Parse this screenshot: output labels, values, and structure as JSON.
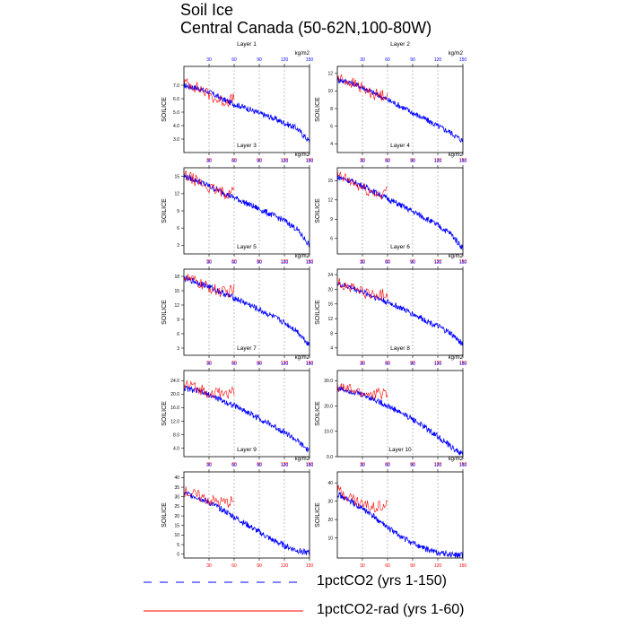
{
  "title": "Soil Ice",
  "subtitle": "Central Canada (50-62N,100-80W)",
  "legend": {
    "blue_label": "1pctCO2 (yrs 1-150)",
    "red_label": "1pctCO2-rad (yrs 1-60)"
  },
  "colors": {
    "blue": "#0000ff",
    "red": "#ff0000",
    "grid": "#999999"
  },
  "chart_data": [
    {
      "type": "line",
      "title": "Layer 1",
      "ylabel": "SOILICE",
      "units_label": "kg/m2",
      "top_ticks": [
        "30",
        "60",
        "90",
        "120",
        "150"
      ],
      "bottom_ticks": [
        "30",
        "60",
        "90",
        "120",
        "150"
      ],
      "yticks": [
        "3.0",
        "4.0",
        "5.0",
        "6.0",
        "7.0"
      ],
      "ylim": [
        2.0,
        8.4
      ],
      "xlim": [
        0,
        150
      ],
      "grid": "vertical dashed",
      "series": [
        {
          "name": "1pctCO2 (yrs 1-150)",
          "x": [
            0,
            15,
            30,
            45,
            60,
            75,
            90,
            105,
            120,
            135,
            150
          ],
          "values": [
            7.0,
            6.8,
            6.5,
            6.0,
            5.6,
            5.3,
            4.9,
            4.6,
            4.2,
            3.8,
            2.8
          ]
        },
        {
          "name": "1pctCO2-rad (yrs 1-60)",
          "x": [
            0,
            10,
            20,
            30,
            40,
            50,
            60
          ],
          "values": [
            7.2,
            7.0,
            6.7,
            6.3,
            5.9,
            5.8,
            6.0
          ]
        }
      ]
    },
    {
      "type": "line",
      "title": "Layer 2",
      "ylabel": "SOILICE",
      "units_label": "kg/m2",
      "top_ticks": [
        "30",
        "60",
        "90",
        "120",
        "150"
      ],
      "bottom_ticks": [
        "30",
        "60",
        "90",
        "120",
        "150"
      ],
      "yticks": [
        "4",
        "6",
        "8",
        "10",
        "12"
      ],
      "ylim": [
        3.0,
        12.8
      ],
      "xlim": [
        0,
        150
      ],
      "grid": "vertical dashed",
      "series": [
        {
          "name": "1pctCO2 (yrs 1-150)",
          "x": [
            0,
            15,
            30,
            45,
            60,
            75,
            90,
            105,
            120,
            135,
            150
          ],
          "values": [
            11.3,
            11.0,
            10.4,
            9.7,
            9.0,
            8.3,
            7.5,
            6.8,
            6.0,
            5.3,
            4.3
          ]
        },
        {
          "name": "1pctCO2-rad (yrs 1-60)",
          "x": [
            0,
            10,
            20,
            30,
            40,
            50,
            60
          ],
          "values": [
            11.5,
            11.2,
            10.8,
            10.3,
            9.8,
            9.5,
            9.7
          ]
        }
      ]
    },
    {
      "type": "line",
      "title": "Layer 3",
      "ylabel": "SOILICE",
      "units_label": "kg/m2",
      "top_ticks": [
        "30",
        "60",
        "90",
        "120",
        "150"
      ],
      "bottom_ticks": [
        "30",
        "60",
        "90",
        "120",
        "150"
      ],
      "yticks": [
        "3",
        "6",
        "9",
        "12",
        "15"
      ],
      "ylim": [
        1.5,
        16.5
      ],
      "xlim": [
        0,
        150
      ],
      "grid": "vertical dashed",
      "series": [
        {
          "name": "1pctCO2 (yrs 1-150)",
          "x": [
            0,
            15,
            30,
            45,
            60,
            75,
            90,
            105,
            120,
            135,
            150
          ],
          "values": [
            15.0,
            14.3,
            13.3,
            12.3,
            11.3,
            10.3,
            9.3,
            8.3,
            7.3,
            5.8,
            3.0
          ]
        },
        {
          "name": "1pctCO2-rad (yrs 1-60)",
          "x": [
            0,
            10,
            20,
            30,
            40,
            50,
            60
          ],
          "values": [
            15.2,
            14.6,
            13.8,
            13.0,
            12.4,
            12.0,
            12.6
          ]
        }
      ]
    },
    {
      "type": "line",
      "title": "Layer 4",
      "ylabel": "SOILICE",
      "units_label": "kg/m2",
      "top_ticks": [
        "30",
        "60",
        "90",
        "120",
        "150"
      ],
      "bottom_ticks": [
        "30",
        "60",
        "90",
        "120",
        "150"
      ],
      "yticks": [
        "6",
        "9",
        "12",
        "15"
      ],
      "ylim": [
        3.6,
        17.0
      ],
      "xlim": [
        0,
        150
      ],
      "grid": "vertical dashed",
      "series": [
        {
          "name": "1pctCO2 (yrs 1-150)",
          "x": [
            0,
            15,
            30,
            45,
            60,
            75,
            90,
            105,
            120,
            135,
            150
          ],
          "values": [
            15.6,
            15.0,
            14.2,
            13.2,
            12.2,
            11.2,
            10.2,
            9.2,
            8.0,
            6.8,
            4.5
          ]
        },
        {
          "name": "1pctCO2-rad (yrs 1-60)",
          "x": [
            0,
            10,
            20,
            30,
            40,
            50,
            60
          ],
          "values": [
            15.8,
            15.2,
            14.5,
            13.8,
            13.2,
            12.8,
            13.4
          ]
        }
      ]
    },
    {
      "type": "line",
      "title": "Layer 5",
      "ylabel": "SOILICE",
      "units_label": "kg/m2",
      "top_ticks": [
        "30",
        "60",
        "90",
        "120",
        "150"
      ],
      "bottom_ticks": [
        "30",
        "60",
        "90",
        "120",
        "150"
      ],
      "yticks": [
        "3",
        "6",
        "9",
        "12",
        "15",
        "18"
      ],
      "ylim": [
        1.5,
        19.5
      ],
      "xlim": [
        0,
        150
      ],
      "grid": "vertical dashed",
      "series": [
        {
          "name": "1pctCO2 (yrs 1-150)",
          "x": [
            0,
            15,
            30,
            45,
            60,
            75,
            90,
            105,
            120,
            135,
            150
          ],
          "values": [
            17.6,
            16.8,
            15.8,
            14.6,
            13.5,
            12.3,
            11.0,
            9.7,
            8.3,
            6.6,
            3.6
          ]
        },
        {
          "name": "1pctCO2-rad (yrs 1-60)",
          "x": [
            0,
            10,
            20,
            30,
            40,
            50,
            60
          ],
          "values": [
            17.9,
            17.2,
            16.4,
            15.6,
            15.0,
            14.6,
            15.2
          ]
        }
      ]
    },
    {
      "type": "line",
      "title": "Layer 6",
      "ylabel": "SOILICE",
      "units_label": "kg/m2",
      "top_ticks": [
        "30",
        "60",
        "90",
        "120",
        "150"
      ],
      "bottom_ticks": [
        "30",
        "60",
        "90",
        "120",
        "150"
      ],
      "yticks": [
        "4",
        "8",
        "12",
        "16",
        "20",
        "24"
      ],
      "ylim": [
        2.0,
        25.5
      ],
      "xlim": [
        0,
        150
      ],
      "grid": "vertical dashed",
      "series": [
        {
          "name": "1pctCO2 (yrs 1-150)",
          "x": [
            0,
            15,
            30,
            45,
            60,
            75,
            90,
            105,
            120,
            135,
            150
          ],
          "values": [
            21.5,
            20.6,
            19.3,
            17.9,
            16.5,
            15.0,
            13.3,
            11.6,
            9.9,
            8.0,
            5.0
          ]
        },
        {
          "name": "1pctCO2-rad (yrs 1-60)",
          "x": [
            0,
            10,
            20,
            30,
            40,
            50,
            60
          ],
          "values": [
            21.8,
            21.0,
            20.2,
            19.4,
            18.6,
            18.3,
            19.0
          ]
        }
      ]
    },
    {
      "type": "line",
      "title": "Layer 7",
      "ylabel": "SOILICE",
      "units_label": "kg/m2",
      "top_ticks": [
        "30",
        "60",
        "90",
        "120",
        "150"
      ],
      "bottom_ticks": [
        "30",
        "60",
        "90",
        "120",
        "150"
      ],
      "yticks": [
        "4.0",
        "8.0",
        "12.0",
        "16.0",
        "20.0",
        "24.0"
      ],
      "ylim": [
        1.5,
        27.0
      ],
      "xlim": [
        0,
        150
      ],
      "grid": "vertical dashed",
      "series": [
        {
          "name": "1pctCO2 (yrs 1-150)",
          "x": [
            0,
            15,
            30,
            45,
            60,
            75,
            90,
            105,
            120,
            135,
            150
          ],
          "values": [
            21.8,
            21.0,
            19.8,
            18.2,
            16.6,
            14.8,
            12.8,
            10.8,
            8.8,
            6.2,
            3.0
          ]
        },
        {
          "name": "1pctCO2-rad (yrs 1-60)",
          "x": [
            0,
            10,
            20,
            30,
            40,
            50,
            60
          ],
          "values": [
            22.8,
            22.2,
            21.5,
            20.5,
            20.2,
            20.4,
            20.6
          ]
        }
      ]
    },
    {
      "type": "line",
      "title": "Layer 8",
      "ylabel": "SOILICE",
      "units_label": "kg/m2",
      "top_ticks": [
        "30",
        "60",
        "90",
        "120",
        "150"
      ],
      "bottom_ticks": [
        "30",
        "60",
        "90",
        "120",
        "150"
      ],
      "yticks": [
        "0.0",
        "10.0",
        "20.0",
        "30.0"
      ],
      "ylim": [
        0.0,
        34.0
      ],
      "xlim": [
        0,
        150
      ],
      "grid": "vertical dashed",
      "series": [
        {
          "name": "1pctCO2 (yrs 1-150)",
          "x": [
            0,
            15,
            30,
            45,
            60,
            75,
            90,
            105,
            120,
            135,
            150
          ],
          "values": [
            27.0,
            26.0,
            24.5,
            22.5,
            20.0,
            17.5,
            14.8,
            11.5,
            8.0,
            4.0,
            0.8
          ]
        },
        {
          "name": "1pctCO2-rad (yrs 1-60)",
          "x": [
            0,
            10,
            20,
            30,
            40,
            50,
            60
          ],
          "values": [
            27.5,
            26.8,
            26.0,
            25.0,
            24.6,
            24.8,
            25.2
          ]
        }
      ]
    },
    {
      "type": "line",
      "title": "Layer 9",
      "ylabel": "SOILICE",
      "units_label": "kg/m2",
      "top_ticks": [
        "30",
        "60",
        "90",
        "120",
        "150"
      ],
      "bottom_ticks": [
        "30",
        "60",
        "90",
        "120",
        "150"
      ],
      "yticks": [
        "0",
        "5",
        "10",
        "15",
        "20",
        "25",
        "30",
        "35",
        "40"
      ],
      "ylim": [
        -2.0,
        43.0
      ],
      "xlim": [
        0,
        150
      ],
      "grid": "vertical dashed",
      "series": [
        {
          "name": "1pctCO2 (yrs 1-150)",
          "x": [
            0,
            15,
            30,
            45,
            60,
            75,
            90,
            105,
            120,
            135,
            150
          ],
          "values": [
            32.0,
            30.0,
            27.0,
            23.5,
            19.5,
            15.5,
            11.5,
            7.5,
            4.5,
            2.0,
            0.5
          ]
        },
        {
          "name": "1pctCO2-rad (yrs 1-60)",
          "x": [
            0,
            10,
            20,
            30,
            40,
            50,
            60
          ],
          "values": [
            33.0,
            31.5,
            30.0,
            28.5,
            27.5,
            27.0,
            28.0
          ]
        }
      ]
    },
    {
      "type": "line",
      "title": "Layer 10",
      "ylabel": "SOILICE",
      "units_label": "kg/m2",
      "top_ticks": [
        "30",
        "60",
        "90",
        "120",
        "150"
      ],
      "bottom_ticks": [
        "30",
        "60",
        "90",
        "120",
        "150"
      ],
      "yticks": [
        "10",
        "20",
        "30",
        "40"
      ],
      "ylim": [
        -1.0,
        46.0
      ],
      "xlim": [
        0,
        150
      ],
      "grid": "vertical dashed",
      "series": [
        {
          "name": "1pctCO2 (yrs 1-150)",
          "x": [
            0,
            15,
            30,
            45,
            60,
            75,
            90,
            105,
            120,
            135,
            150
          ],
          "values": [
            34.0,
            30.0,
            26.0,
            21.0,
            15.5,
            11.0,
            7.0,
            4.0,
            2.0,
            1.0,
            0.5
          ]
        },
        {
          "name": "1pctCO2-rad (yrs 1-60)",
          "x": [
            0,
            10,
            20,
            30,
            40,
            50,
            60
          ],
          "values": [
            36.0,
            33.5,
            31.0,
            28.5,
            27.0,
            28.0,
            29.0
          ]
        }
      ]
    }
  ]
}
